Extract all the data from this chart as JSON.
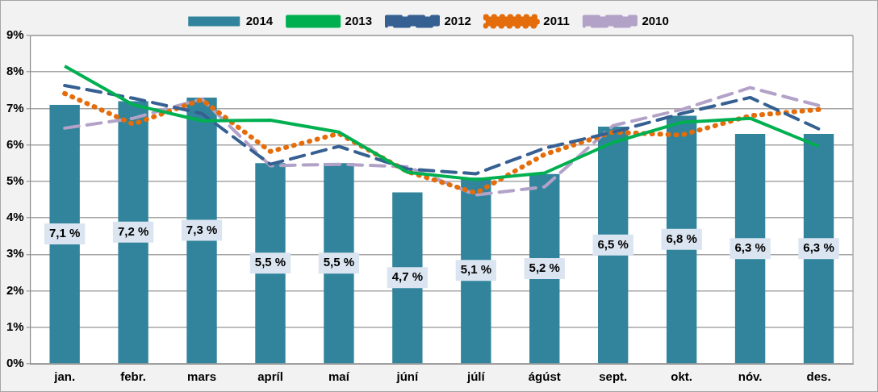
{
  "chart_data": {
    "type": "bar",
    "categories": [
      "jan.",
      "febr.",
      "mars",
      "apríl",
      "maí",
      "júní",
      "júlí",
      "ágúst",
      "sept.",
      "okt.",
      "nóv.",
      "des."
    ],
    "series": [
      {
        "name": "2014",
        "color": "#31849b",
        "values": [
          7.1,
          7.2,
          7.3,
          5.5,
          5.5,
          4.7,
          5.1,
          5.2,
          6.5,
          6.8,
          6.3,
          6.3
        ],
        "value_labels": [
          "7,1 %",
          "7,2 %",
          "7,3 %",
          "5,5 %",
          "5,5 %",
          "4,7 %",
          "5,1 %",
          "5,2 %",
          "6,5 %",
          "6,8 %",
          "6,3 %",
          "6,3 %"
        ]
      },
      {
        "name": "2013",
        "type": "line",
        "line_style": "solid",
        "color": "#00b050",
        "values": [
          8.16,
          7.1,
          6.66,
          6.68,
          6.35,
          5.25,
          5.05,
          5.23,
          6.07,
          6.62,
          6.73,
          5.96
        ]
      },
      {
        "name": "2012",
        "type": "line",
        "line_style": "dashed",
        "color": "#366092",
        "values": [
          7.63,
          7.28,
          6.86,
          5.47,
          5.96,
          5.34,
          5.21,
          5.91,
          6.35,
          6.86,
          7.3,
          6.44
        ]
      },
      {
        "name": "2011",
        "type": "line",
        "line_style": "dotted",
        "color": "#e46c0a",
        "values": [
          7.41,
          6.57,
          7.24,
          5.82,
          6.31,
          5.27,
          4.68,
          5.74,
          6.35,
          6.27,
          6.8,
          6.97
        ]
      },
      {
        "name": "2010",
        "type": "line",
        "line_style": "dashed",
        "color": "#b3a2c7",
        "values": [
          6.46,
          6.73,
          7.26,
          5.43,
          5.47,
          5.4,
          4.63,
          4.85,
          6.53,
          6.97,
          7.57,
          7.08
        ]
      }
    ],
    "ylim": [
      0,
      9
    ],
    "yticks": [
      {
        "value": 0,
        "label": "0%"
      },
      {
        "value": 1,
        "label": "1%"
      },
      {
        "value": 2,
        "label": "2%"
      },
      {
        "value": 3,
        "label": "3%"
      },
      {
        "value": 4,
        "label": "4%"
      },
      {
        "value": 5,
        "label": "5%"
      },
      {
        "value": 6,
        "label": "6%"
      },
      {
        "value": 7,
        "label": "7%"
      },
      {
        "value": 8,
        "label": "8%"
      },
      {
        "value": 9,
        "label": "9%"
      }
    ],
    "grid": "y",
    "legend": "top",
    "marker": "none"
  }
}
